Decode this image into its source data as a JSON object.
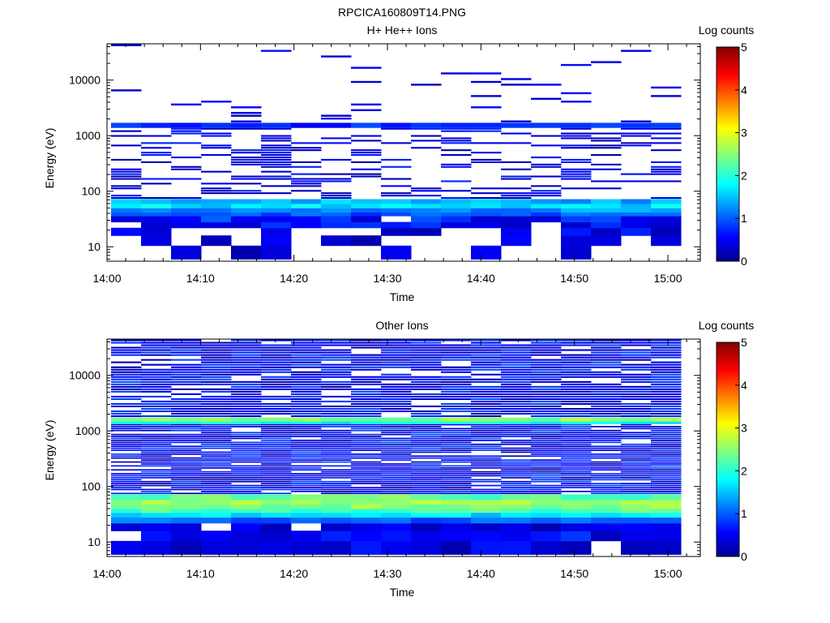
{
  "figure": {
    "title": "RPCICA160809T14.PNG"
  },
  "chart_data": [
    {
      "type": "heatmap",
      "title": "H+ He++ Ions",
      "xlabel": "Time",
      "ylabel": "Energy (eV)",
      "x_tick_labels": [
        "14:00",
        "14:10",
        "14:20",
        "14:30",
        "14:40",
        "14:50",
        "15:00"
      ],
      "x_range_minutes": [
        0,
        63
      ],
      "y_scale": "log",
      "y_range": [
        5.5,
        45000
      ],
      "y_tick_labels": [
        "10",
        "100",
        "1000",
        "10000"
      ],
      "colorbar": {
        "label": "Log counts",
        "range": [
          0,
          5
        ],
        "tick_labels": [
          "0",
          "1",
          "2",
          "3",
          "4",
          "5"
        ],
        "colormap": "jet"
      },
      "time_bins": 19,
      "bands": [
        {
          "e_min": 6,
          "e_max": 10.5,
          "fill_fraction": 0.45,
          "value_range": [
            0.1,
            0.6
          ]
        },
        {
          "e_min": 10.5,
          "e_max": 16,
          "fill_fraction": 0.5,
          "value_range": [
            0.2,
            0.7
          ]
        },
        {
          "e_min": 16,
          "e_max": 22,
          "fill_fraction": 0.6,
          "value_range": [
            0.2,
            0.8
          ]
        },
        {
          "e_min": 22,
          "e_max": 28,
          "fill_fraction": 0.75,
          "value_range": [
            0.3,
            0.9
          ]
        },
        {
          "e_min": 28,
          "e_max": 36,
          "fill_fraction": 0.85,
          "value_range": [
            0.4,
            1.1
          ]
        },
        {
          "e_min": 36,
          "e_max": 42,
          "fill_fraction": 0.95,
          "value_range": [
            0.8,
            1.3
          ]
        },
        {
          "e_min": 42,
          "e_max": 50,
          "fill_fraction": 1.0,
          "value_range": [
            1.1,
            1.6
          ]
        },
        {
          "e_min": 50,
          "e_max": 60,
          "fill_fraction": 1.0,
          "value_range": [
            1.5,
            2.0
          ]
        },
        {
          "e_min": 60,
          "e_max": 72,
          "fill_fraction": 1.0,
          "value_range": [
            1.2,
            1.8
          ]
        },
        {
          "e_min": 72,
          "e_max": 1400,
          "fill_fraction": 0.35,
          "value_range": [
            0.2,
            0.8
          ],
          "row_count": 30
        },
        {
          "e_min": 1400,
          "e_max": 1700,
          "fill_fraction": 1.0,
          "value_range": [
            0.6,
            1.0
          ]
        },
        {
          "e_min": 1700,
          "e_max": 45000,
          "fill_fraction": 0.06,
          "value_range": [
            0.3,
            0.7
          ],
          "row_count": 28
        }
      ]
    },
    {
      "type": "heatmap",
      "title": "Other Ions",
      "xlabel": "Time",
      "ylabel": "Energy (eV)",
      "x_tick_labels": [
        "14:00",
        "14:10",
        "14:20",
        "14:30",
        "14:40",
        "14:50",
        "15:00"
      ],
      "x_range_minutes": [
        0,
        63
      ],
      "y_scale": "log",
      "y_range": [
        5.5,
        45000
      ],
      "y_tick_labels": [
        "10",
        "100",
        "1000",
        "10000"
      ],
      "colorbar": {
        "label": "Log counts",
        "range": [
          0,
          5
        ],
        "tick_labels": [
          "0",
          "1",
          "2",
          "3",
          "4",
          "5"
        ],
        "colormap": "jet"
      },
      "time_bins": 19,
      "bands": [
        {
          "e_min": 6,
          "e_max": 10.5,
          "fill_fraction": 0.92,
          "value_range": [
            0.2,
            0.8
          ]
        },
        {
          "e_min": 10.5,
          "e_max": 16,
          "fill_fraction": 0.93,
          "value_range": [
            0.3,
            0.9
          ]
        },
        {
          "e_min": 16,
          "e_max": 22,
          "fill_fraction": 0.9,
          "value_range": [
            0.2,
            0.8
          ]
        },
        {
          "e_min": 22,
          "e_max": 28,
          "fill_fraction": 1.0,
          "value_range": [
            0.8,
            1.3
          ]
        },
        {
          "e_min": 28,
          "e_max": 34,
          "fill_fraction": 1.0,
          "value_range": [
            1.5,
            2.0
          ]
        },
        {
          "e_min": 34,
          "e_max": 40,
          "fill_fraction": 1.0,
          "value_range": [
            2.0,
            2.5
          ]
        },
        {
          "e_min": 40,
          "e_max": 48,
          "fill_fraction": 1.0,
          "value_range": [
            2.3,
            2.8
          ]
        },
        {
          "e_min": 48,
          "e_max": 58,
          "fill_fraction": 1.0,
          "value_range": [
            2.4,
            2.9
          ]
        },
        {
          "e_min": 58,
          "e_max": 72,
          "fill_fraction": 1.0,
          "value_range": [
            2.1,
            2.6
          ]
        },
        {
          "e_min": 72,
          "e_max": 1350,
          "fill_fraction": 0.9,
          "value_range": [
            0.2,
            1.0
          ],
          "row_count": 36
        },
        {
          "e_min": 1350,
          "e_max": 1500,
          "fill_fraction": 1.0,
          "value_range": [
            1.6,
            2.1
          ]
        },
        {
          "e_min": 1500,
          "e_max": 1750,
          "fill_fraction": 1.0,
          "value_range": [
            2.3,
            2.8
          ]
        },
        {
          "e_min": 1750,
          "e_max": 45000,
          "fill_fraction": 0.88,
          "value_range": [
            0.2,
            1.0
          ],
          "row_count": 32
        }
      ]
    }
  ]
}
